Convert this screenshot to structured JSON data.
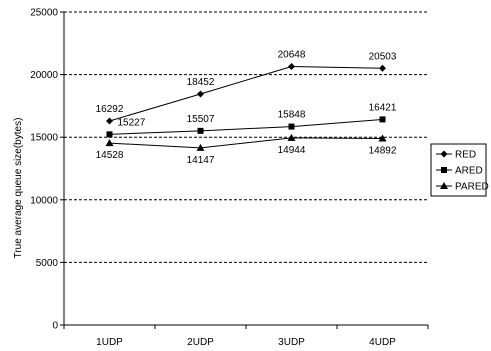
{
  "chart_data": {
    "type": "line",
    "title": "",
    "xlabel": "",
    "ylabel": "True average queue size(bytes)",
    "categories": [
      "1UDP",
      "2UDP",
      "3UDP",
      "4UDP"
    ],
    "ylim": [
      0,
      25000
    ],
    "yticks": [
      0,
      5000,
      10000,
      15000,
      20000,
      25000
    ],
    "grid": "horizontal dashed",
    "legend_position": "right",
    "series": [
      {
        "name": "RED",
        "marker": "diamond",
        "values": [
          16292,
          18452,
          20648,
          20503
        ]
      },
      {
        "name": "ARED",
        "marker": "square",
        "values": [
          15227,
          15507,
          15848,
          16421
        ]
      },
      {
        "name": "PARED",
        "marker": "triangle",
        "values": [
          14528,
          14147,
          14944,
          14892
        ]
      }
    ],
    "colors": {
      "line": "#000000",
      "grid": "#000000",
      "background": "#ffffff"
    }
  }
}
